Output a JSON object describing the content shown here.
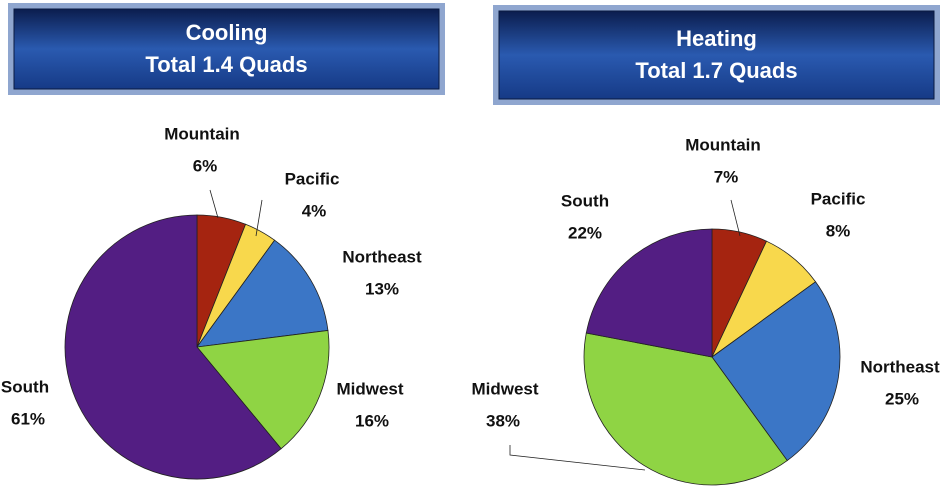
{
  "chart_data": [
    {
      "type": "pie",
      "title": "Cooling",
      "subtitle": "Total 1.4 Quads",
      "categories": [
        "Mountain",
        "Pacific",
        "Northeast",
        "Midwest",
        "South"
      ],
      "values": [
        6,
        4,
        13,
        16,
        61
      ],
      "value_labels": [
        "6%",
        "4%",
        "13%",
        "16%",
        "61%"
      ],
      "colors": [
        "#a52410",
        "#f8d84c",
        "#3b76c6",
        "#8fd444",
        "#531e83"
      ]
    },
    {
      "type": "pie",
      "title": "Heating",
      "subtitle": "Total 1.7 Quads",
      "categories": [
        "Mountain",
        "Pacific",
        "Northeast",
        "Midwest",
        "South"
      ],
      "values": [
        7,
        8,
        25,
        38,
        22
      ],
      "value_labels": [
        "7%",
        "8%",
        "25%",
        "38%",
        "22%"
      ],
      "colors": [
        "#a52410",
        "#f8d84c",
        "#3b76c6",
        "#8fd444",
        "#531e83"
      ]
    }
  ]
}
